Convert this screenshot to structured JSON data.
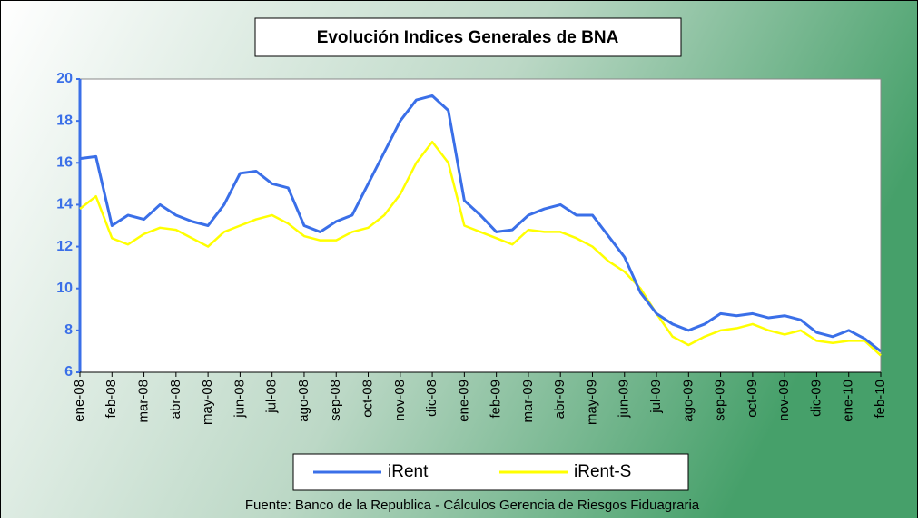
{
  "chart_data": {
    "type": "line",
    "title": "Evolución Indices Generales de BNA",
    "source": "Fuente: Banco de la Republica - Cálculos Gerencia de Riesgos Fiduagraria",
    "categories": [
      "ene-08",
      null,
      "feb-08",
      null,
      "mar-08",
      null,
      "abr-08",
      null,
      "may-08",
      null,
      "jun-08",
      null,
      "jul-08",
      null,
      "ago-08",
      null,
      "sep-08",
      null,
      "oct-08",
      null,
      "nov-08",
      null,
      "dic-08",
      null,
      "ene-09",
      null,
      "feb-09",
      null,
      "mar-09",
      null,
      "abr-09",
      null,
      "may-09",
      null,
      "jun-09",
      null,
      "jul-09",
      null,
      "ago-09",
      null,
      "sep-09",
      null,
      "oct-09",
      null,
      "nov-09",
      null,
      "dic-09",
      null,
      "ene-10",
      null,
      "feb-10"
    ],
    "series": [
      {
        "name": "iRent",
        "color": "#3a6fe8",
        "values": [
          16.2,
          16.3,
          13.0,
          13.5,
          13.3,
          14.0,
          13.5,
          13.2,
          13.0,
          14.0,
          15.5,
          15.6,
          15.0,
          14.8,
          13.0,
          12.7,
          13.2,
          13.5,
          15.0,
          16.5,
          18.0,
          19.0,
          19.2,
          18.5,
          14.2,
          13.5,
          12.7,
          12.8,
          13.5,
          13.8,
          14.0,
          13.5,
          13.5,
          12.5,
          11.5,
          9.8,
          8.8,
          8.3,
          8.0,
          8.3,
          8.8,
          8.7,
          8.8,
          8.6,
          8.7,
          8.5,
          7.9,
          7.7,
          8.0,
          7.6,
          7.0
        ]
      },
      {
        "name": "iRent-S",
        "color": "#ffff00",
        "values": [
          13.8,
          14.4,
          12.4,
          12.1,
          12.6,
          12.9,
          12.8,
          12.4,
          12.0,
          12.7,
          13.0,
          13.3,
          13.5,
          13.1,
          12.5,
          12.3,
          12.3,
          12.7,
          12.9,
          13.5,
          14.5,
          16.0,
          17.0,
          16.0,
          13.0,
          12.7,
          12.4,
          12.1,
          12.8,
          12.7,
          12.7,
          12.4,
          12.0,
          11.3,
          10.8,
          10.0,
          8.8,
          7.7,
          7.3,
          7.7,
          8.0,
          8.1,
          8.3,
          8.0,
          7.8,
          8.0,
          7.5,
          7.4,
          7.5,
          7.5,
          6.8
        ]
      }
    ],
    "ylim": [
      6,
      20
    ],
    "yticks": [
      6,
      8,
      10,
      12,
      14,
      16,
      18,
      20
    ],
    "grid": false
  }
}
